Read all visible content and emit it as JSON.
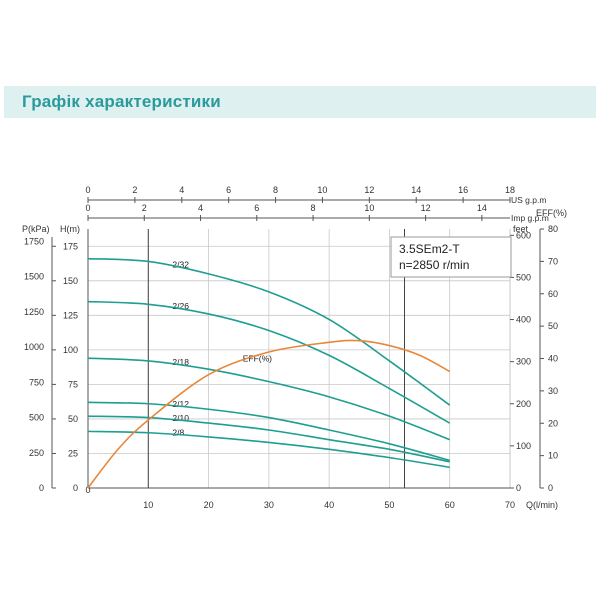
{
  "header": {
    "title": "Графік характеристики"
  },
  "chart_data": {
    "type": "line",
    "model_box": {
      "model": "3.5SEm2-T",
      "speed": "n=2850 r/min"
    },
    "x_axis": {
      "label": "Q(l/min)",
      "range": [
        0,
        70
      ],
      "ticks": [
        10,
        20,
        30,
        40,
        50,
        60,
        70
      ],
      "origin_label": "0"
    },
    "top_axes": [
      {
        "label": "US  g.p.m",
        "range": [
          0,
          18
        ],
        "ticks": [
          0,
          2,
          4,
          6,
          8,
          10,
          12,
          14,
          16,
          18
        ]
      },
      {
        "label": "Imp  g.p.m",
        "range": [
          0,
          15
        ],
        "ticks": [
          0,
          2,
          4,
          6,
          8,
          10,
          12,
          14
        ]
      }
    ],
    "y_axes": {
      "pressure": {
        "label": "P(kPa)",
        "range": [
          0,
          1837.5
        ],
        "ticks": [
          0,
          250,
          500,
          750,
          1000,
          1250,
          1500,
          1750
        ]
      },
      "head": {
        "label": "H(m)",
        "range": [
          0,
          187.5
        ],
        "ticks": [
          0,
          25,
          50,
          75,
          100,
          125,
          150,
          175
        ]
      },
      "feet": {
        "label": "feet",
        "range": [
          0,
          615
        ],
        "ticks": [
          0,
          100,
          200,
          300,
          400,
          500,
          600
        ]
      },
      "efficiency": {
        "label": "EFF(%)",
        "range": [
          0,
          80
        ],
        "ticks": [
          0,
          10,
          20,
          30,
          40,
          50,
          60,
          70,
          80
        ]
      }
    },
    "grid": true,
    "operating_range": [
      10,
      52.5
    ],
    "series": [
      {
        "name": "2/32",
        "axis": "head",
        "color": "#1e9e90",
        "label_at": 14,
        "points": [
          [
            0,
            166
          ],
          [
            10,
            164
          ],
          [
            20,
            155
          ],
          [
            30,
            142
          ],
          [
            40,
            122
          ],
          [
            50,
            92
          ],
          [
            60,
            60
          ]
        ]
      },
      {
        "name": "2/26",
        "axis": "head",
        "color": "#1e9e90",
        "label_at": 14,
        "points": [
          [
            0,
            135
          ],
          [
            10,
            133
          ],
          [
            20,
            126
          ],
          [
            30,
            114
          ],
          [
            40,
            96
          ],
          [
            50,
            72
          ],
          [
            60,
            47
          ]
        ]
      },
      {
        "name": "2/18",
        "axis": "head",
        "color": "#1e9e90",
        "label_at": 14,
        "points": [
          [
            0,
            94
          ],
          [
            10,
            92
          ],
          [
            20,
            86
          ],
          [
            30,
            77
          ],
          [
            40,
            66
          ],
          [
            50,
            52
          ],
          [
            60,
            35
          ]
        ]
      },
      {
        "name": "2/12",
        "axis": "head",
        "color": "#1e9e90",
        "label_at": 14,
        "points": [
          [
            0,
            62
          ],
          [
            10,
            61
          ],
          [
            20,
            57
          ],
          [
            30,
            51
          ],
          [
            40,
            42
          ],
          [
            50,
            32
          ],
          [
            60,
            20
          ]
        ]
      },
      {
        "name": "2/10",
        "axis": "head",
        "color": "#1e9e90",
        "label_at": 14,
        "points": [
          [
            0,
            52
          ],
          [
            10,
            51
          ],
          [
            20,
            47
          ],
          [
            30,
            42
          ],
          [
            40,
            35
          ],
          [
            50,
            28
          ],
          [
            60,
            19
          ]
        ]
      },
      {
        "name": "2/8",
        "axis": "head",
        "color": "#1e9e90",
        "label_at": 14,
        "points": [
          [
            0,
            41
          ],
          [
            10,
            40
          ],
          [
            20,
            37
          ],
          [
            30,
            33
          ],
          [
            40,
            28
          ],
          [
            50,
            22
          ],
          [
            60,
            15
          ]
        ]
      },
      {
        "name": "EFF(%)",
        "axis": "efficiency",
        "color": "#e8873a",
        "label_at": 25,
        "points": [
          [
            0,
            0
          ],
          [
            5,
            12
          ],
          [
            10,
            21
          ],
          [
            20,
            35
          ],
          [
            30,
            42
          ],
          [
            40,
            45
          ],
          [
            45,
            45.5
          ],
          [
            50,
            44
          ],
          [
            55,
            41
          ],
          [
            60,
            36
          ]
        ]
      }
    ]
  },
  "colors": {
    "curve": "#1e9e90",
    "efficiency": "#e8873a",
    "grid": "#c8c8c8",
    "axis": "#555555",
    "banner_bg": "#dff0f1",
    "banner_text": "#2a9a9a"
  }
}
